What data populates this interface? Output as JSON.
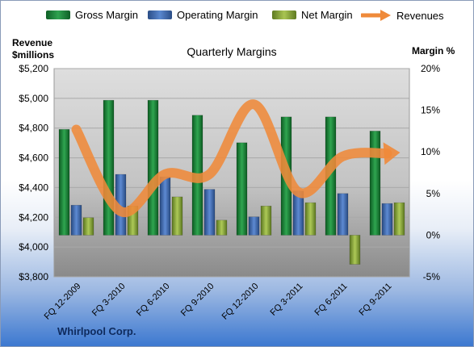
{
  "legend": {
    "gross": "Gross Margin",
    "operating": "Operating Margin",
    "net": "Net Margin",
    "revenues": "Revenues"
  },
  "left_axis_title": [
    "Revenue",
    "$millions"
  ],
  "right_axis_title": "Margin %",
  "brand": "Whirlpool Corp.",
  "colors": {
    "gross": "#1e8a3e",
    "operating": "#3f6fb5",
    "net": "#8fae3c",
    "revenues": "#ef8a3a",
    "plot_bg_top": "#dcdcdc",
    "plot_bg_bottom": "#8e8e8e"
  },
  "chart_data": {
    "type": "bar",
    "title": "Quarterly Margins",
    "categories": [
      "FQ 12-2009",
      "FQ 3-2010",
      "FQ 6-2010",
      "FQ 9-2010",
      "FQ 12-2010",
      "FQ 3-2011",
      "FQ 6-2011",
      "FQ 9-2011"
    ],
    "series": [
      {
        "name": "Gross Margin",
        "axis": "right",
        "values": [
          12.7,
          16.2,
          16.2,
          14.4,
          11.1,
          14.2,
          14.2,
          12.5
        ]
      },
      {
        "name": "Operating Margin",
        "axis": "right",
        "values": [
          3.6,
          7.3,
          7.0,
          5.5,
          2.2,
          5.3,
          5.0,
          3.8
        ]
      },
      {
        "name": "Net Margin",
        "axis": "right",
        "values": [
          2.1,
          3.5,
          4.6,
          1.8,
          3.5,
          3.9,
          -3.5,
          3.9
        ]
      },
      {
        "name": "Revenues",
        "axis": "left",
        "type": "line",
        "values": [
          4790,
          4240,
          4490,
          4490,
          4960,
          4370,
          4610,
          4630
        ]
      }
    ],
    "y_left": {
      "ticks": [
        "$3,800",
        "$4,000",
        "$4,200",
        "$4,400",
        "$4,600",
        "$4,800",
        "$5,000",
        "$5,200"
      ],
      "min": 3800,
      "max": 5200
    },
    "y_right": {
      "ticks": [
        "-5%",
        "0%",
        "5%",
        "10%",
        "15%",
        "20%"
      ],
      "min": -5,
      "max": 20
    },
    "grid": true,
    "legend_position": "top"
  }
}
